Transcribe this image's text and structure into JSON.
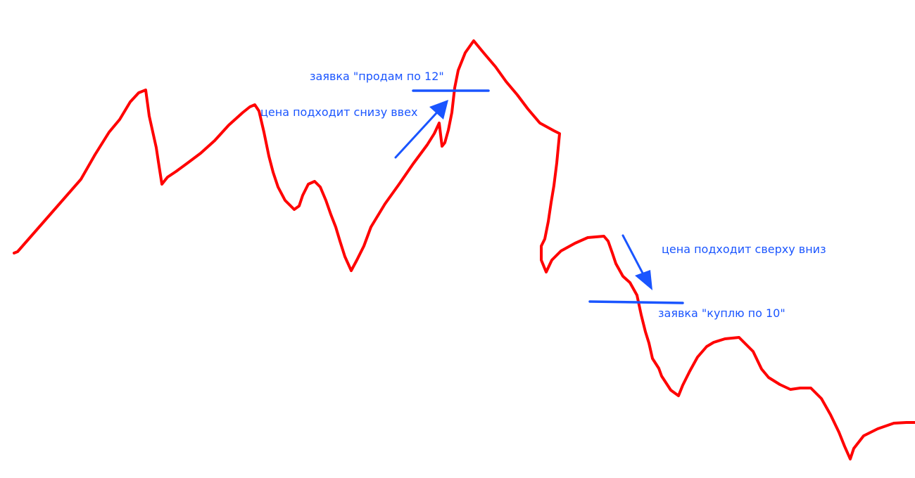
{
  "colors": {
    "price_line": "#ff0000",
    "annotation": "#1a55ff"
  },
  "annotations": {
    "sell_order": "заявка \"продам по 12\"",
    "price_up": "цена подходит снизу ввех",
    "price_down": "цена подходит сверху вниз",
    "buy_order": "заявка \"куплю по 10\""
  }
}
